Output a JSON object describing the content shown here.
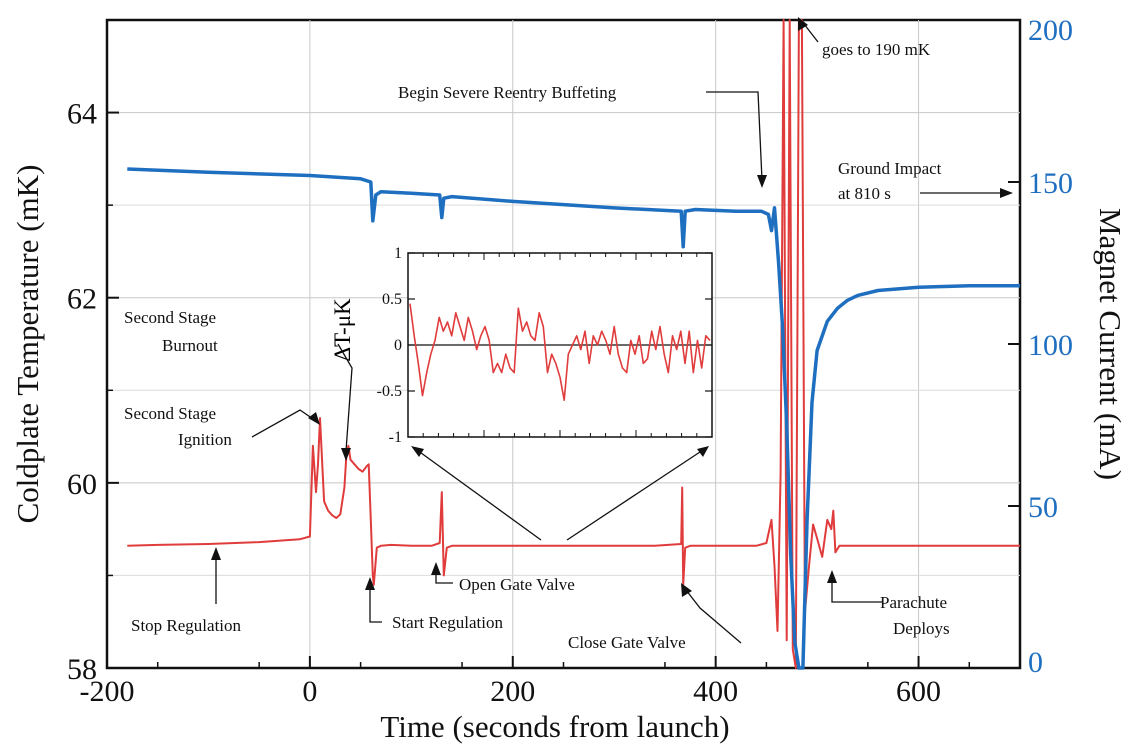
{
  "chart_data": {
    "type": "line",
    "xlabel": "Time (seconds from launch)",
    "ylabel_left": "Coldplate Temperature (mK)",
    "ylabel_right": "Magnet Current (mA)",
    "xlim": [
      -200,
      700
    ],
    "ylim_left": [
      58,
      65
    ],
    "ylim_right": [
      0,
      200
    ],
    "x_ticks": [
      "-200",
      "0",
      "200",
      "400",
      "600"
    ],
    "y_left_ticks": [
      "58",
      "60",
      "62",
      "64"
    ],
    "y_right_ticks": [
      "0",
      "50",
      "100",
      "150",
      "200"
    ],
    "grid": true,
    "colors": {
      "temperature": "#e03c3c",
      "current": "#1f6fc0",
      "axes": "#111111"
    },
    "series": [
      {
        "axis": "left",
        "x": [
          -180,
          -150,
          -100,
          -50,
          -10,
          0,
          3,
          6,
          8,
          10,
          14,
          18,
          22,
          26,
          30,
          34,
          36,
          38,
          40,
          44,
          48,
          52,
          56,
          58,
          60,
          62,
          63,
          66,
          70,
          80,
          100,
          120,
          128,
          130,
          132,
          135,
          140,
          180,
          220,
          260,
          300,
          340,
          366,
          367,
          368,
          370,
          375,
          400,
          440,
          450,
          455,
          458,
          461,
          464,
          467,
          470,
          473,
          476,
          479,
          482,
          485,
          488,
          492,
          496,
          500,
          505,
          510,
          514,
          516,
          518,
          522,
          530,
          560,
          600,
          650,
          700
        ],
        "y": [
          59.32,
          59.33,
          59.34,
          59.36,
          59.39,
          59.42,
          60.4,
          59.9,
          60.2,
          60.7,
          59.8,
          59.7,
          59.65,
          59.62,
          59.66,
          59.95,
          60.3,
          60.4,
          60.25,
          60.2,
          60.15,
          60.12,
          60.18,
          60.2,
          59.6,
          59.0,
          58.9,
          59.3,
          59.32,
          59.33,
          59.32,
          59.32,
          59.35,
          59.9,
          59.0,
          59.3,
          59.32,
          59.32,
          59.32,
          59.32,
          59.32,
          59.32,
          59.34,
          59.95,
          58.9,
          59.3,
          59.32,
          59.32,
          59.32,
          59.35,
          59.6,
          59.1,
          58.4,
          60.1,
          65.0,
          58.3,
          65.0,
          58.2,
          58.0,
          65.0,
          65.0,
          58.6,
          59.1,
          59.55,
          59.4,
          59.2,
          59.6,
          59.5,
          59.7,
          59.25,
          59.32,
          59.32,
          59.32,
          59.32,
          59.32,
          59.32
        ]
      },
      {
        "axis": "right",
        "x": [
          -180,
          -100,
          0,
          50,
          60,
          62,
          65,
          70,
          100,
          128,
          130,
          132,
          140,
          200,
          300,
          366,
          368,
          370,
          380,
          420,
          445,
          452,
          455,
          458,
          462,
          466,
          470,
          474,
          478,
          482,
          486,
          490,
          495,
          500,
          510,
          520,
          530,
          540,
          560,
          580,
          600,
          650,
          700
        ],
        "y": [
          154,
          153,
          152,
          151,
          150,
          138,
          146,
          147,
          146.5,
          146,
          139,
          145,
          145.5,
          144,
          142,
          141,
          130,
          141,
          141.5,
          141,
          141,
          140,
          135,
          142,
          125,
          105,
          75,
          35,
          8,
          0,
          0,
          45,
          82,
          98,
          107,
          111,
          113.5,
          115,
          116.5,
          117,
          117.5,
          118,
          118
        ]
      }
    ],
    "inset": {
      "ylabel": "ΔT-μK",
      "ylim": [
        -1,
        1
      ],
      "y_ticks": [
        "1",
        "0.5",
        "0",
        "-0.5",
        "-1"
      ],
      "y": [
        0.45,
        0.1,
        -0.2,
        -0.55,
        -0.3,
        -0.1,
        0.05,
        0.3,
        0.15,
        0.25,
        0.1,
        0.35,
        0.2,
        0.05,
        0.3,
        0.15,
        -0.05,
        0.1,
        0.2,
        0.05,
        -0.3,
        -0.2,
        -0.3,
        -0.1,
        -0.25,
        -0.3,
        0.4,
        0.15,
        0.25,
        0.1,
        0.05,
        0.35,
        0.2,
        -0.3,
        -0.1,
        -0.2,
        -0.35,
        -0.6,
        -0.1,
        0.0,
        0.1,
        -0.05,
        0.15,
        -0.2,
        0.1,
        0.0,
        0.15,
        0.05,
        -0.1,
        0.2,
        -0.1,
        -0.25,
        -0.3,
        0.05,
        -0.1,
        0.1,
        -0.2,
        -0.15,
        0.15,
        -0.05,
        0.2,
        -0.1,
        -0.3,
        0.1,
        -0.05,
        0.15,
        -0.2,
        0.15,
        -0.3,
        0.05,
        -0.25,
        0.1,
        0.05
      ]
    },
    "annotations": [
      "Second Stage",
      "Burnout",
      "Second Stage",
      "Ignition",
      "Stop Regulation",
      "Start Regulation",
      "Open Gate Valve",
      "Close Gate Valve",
      "Begin Severe Reentry Buffeting",
      "goes to 190 mK",
      "Ground Impact",
      "at 810 s",
      "Parachute",
      "Deploys"
    ]
  }
}
